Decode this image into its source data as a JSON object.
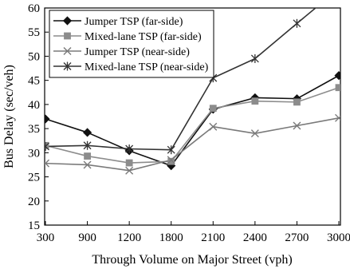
{
  "chart_data": {
    "type": "line",
    "title": "",
    "xlabel": "Through Volume on Major Street (vph)",
    "ylabel": "Bus Delay (sec/veh)",
    "categories": [
      "300",
      "900",
      "1200",
      "1800",
      "2100",
      "2400",
      "2700",
      "3000"
    ],
    "ylim": [
      15,
      60
    ],
    "yticks": [
      15,
      20,
      25,
      30,
      35,
      40,
      45,
      50,
      55,
      60
    ],
    "grid": false,
    "legend_position": "top-left",
    "series": [
      {
        "name": "Jumper TSP (far-side)",
        "marker": "diamond",
        "color": "#111111",
        "values": [
          37.0,
          34.2,
          30.4,
          27.3,
          39.0,
          41.4,
          41.2,
          46.0
        ]
      },
      {
        "name": "Mixed-lane TSP (far-side)",
        "marker": "square",
        "color": "#8c8c8c",
        "values": [
          31.5,
          29.3,
          27.9,
          28.2,
          39.2,
          40.7,
          40.5,
          43.5
        ]
      },
      {
        "name": "Jumper TSP (near-side)",
        "marker": "x",
        "color": "#7a7a7a",
        "values": [
          27.8,
          27.5,
          26.3,
          28.5,
          35.4,
          34.0,
          35.6,
          37.2
        ]
      },
      {
        "name": "Mixed-lane TSP (near-side)",
        "marker": "star",
        "color": "#333333",
        "values": [
          31.3,
          31.5,
          30.8,
          30.6,
          45.5,
          49.5,
          56.8,
          64.0
        ]
      }
    ]
  }
}
